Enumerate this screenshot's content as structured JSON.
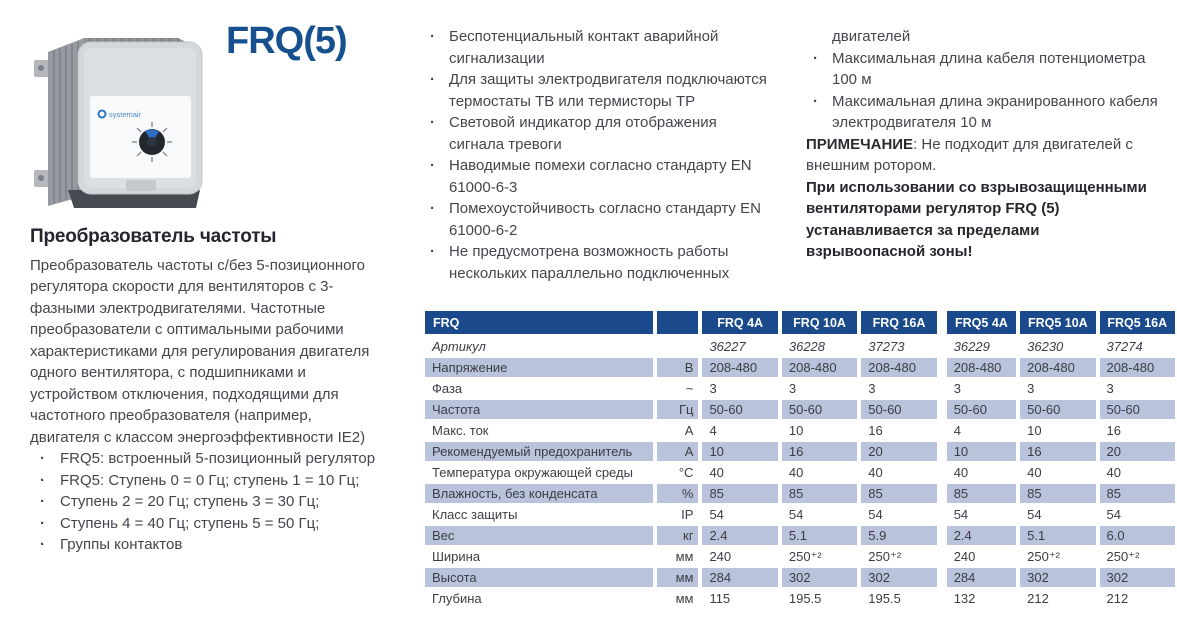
{
  "page": {
    "title": "FRQ(5)"
  },
  "colors": {
    "brand_blue": "#17508f",
    "table_header_navy": "#1a4a8c",
    "table_row_shade": "#b9c3dc",
    "body_text": "#45454d"
  },
  "figure": {
    "device_logo": "systemair"
  },
  "left": {
    "heading": "Преобразователь частоты",
    "paragraph": "Преобразователь частоты с/без 5-позиционного регулятора скорости для вентиляторов с 3-фазными электродвигателями. Частотные преобразователи с оптимальными рабочими характеристиками для регулирования двигателя одного вентилятора, с подшипниками и устройством отключения, подходящими для частотного преобразователя (например, двигателя с классом энергоэффективности IE2)",
    "bullets": [
      "FRQ5: встроенный 5-позиционный регулятор",
      "FRQ5: Ступень 0 = 0 Гц; ступень 1 = 10 Гц;",
      "Ступень 2 = 20 Гц; ступень 3 = 30 Гц;",
      "Ступень 4 = 40 Гц; ступень 5 = 50 Гц;",
      "Группы контактов"
    ]
  },
  "middle": {
    "bullets": [
      "Беспотенциальный контакт аварийной сигнализации",
      "Для защиты электродвигателя подключаются термостаты TB или термисторы TP",
      "Световой индикатор для отображения сигнала тревоги",
      "Наводимые помехи согласно стандарту EN 61000-6-3",
      "Помехоустойчивость согласно стандарту EN 61000-6-2",
      "Не предусмотрена возможность работы нескольких параллельно подключенных"
    ]
  },
  "right": {
    "continuation": "двигателей",
    "bullets": [
      "Максимальная длина кабеля потенциометра 100 м",
      "Максимальная длина экранированного кабеля электродвигателя 10 м"
    ],
    "note_label": "ПРИМЕЧАНИЕ",
    "note_text": ": Не подходит для двигателей с внешним ротором.",
    "warning": "При использовании со взрывозащищенными вентиляторами регулятор FRQ (5) устанавливается за пределами взрывоопасной зоны!"
  },
  "table": {
    "corner_label": "FRQ",
    "columns": [
      "FRQ 4A",
      "FRQ 10A",
      "FRQ 16A",
      "FRQ5 4A",
      "FRQ5 10A",
      "FRQ5 16A"
    ],
    "rows": [
      {
        "label": "Артикул",
        "unit": "",
        "italic": true,
        "values": [
          "36227",
          "36228",
          "37273",
          "36229",
          "36230",
          "37274"
        ]
      },
      {
        "label": "Напряжение",
        "unit": "В",
        "values": [
          "208-480",
          "208-480",
          "208-480",
          "208-480",
          "208-480",
          "208-480"
        ]
      },
      {
        "label": "Фаза",
        "unit": "~",
        "values": [
          "3",
          "3",
          "3",
          "3",
          "3",
          "3"
        ]
      },
      {
        "label": "Частота",
        "unit": "Гц",
        "values": [
          "50-60",
          "50-60",
          "50-60",
          "50-60",
          "50-60",
          "50-60"
        ]
      },
      {
        "label": "Макс. ток",
        "unit": "A",
        "values": [
          "4",
          "10",
          "16",
          "4",
          "10",
          "16"
        ]
      },
      {
        "label": "Рекомендуемый предохранитель",
        "unit": "A",
        "values": [
          "10",
          "16",
          "20",
          "10",
          "16",
          "20"
        ]
      },
      {
        "label": "Температура окружающей среды",
        "unit": "°C",
        "values": [
          "40",
          "40",
          "40",
          "40",
          "40",
          "40"
        ]
      },
      {
        "label": "Влажность, без конденсата",
        "unit": "%",
        "values": [
          "85",
          "85",
          "85",
          "85",
          "85",
          "85"
        ]
      },
      {
        "label": "Класс защиты",
        "unit": "IP",
        "values": [
          "54",
          "54",
          "54",
          "54",
          "54",
          "54"
        ]
      },
      {
        "label": "Вес",
        "unit": "кг",
        "values": [
          "2.4",
          "5.1",
          "5.9",
          "2.4",
          "5.1",
          "6.0"
        ]
      },
      {
        "label": "Ширина",
        "unit": "мм",
        "values": [
          "240",
          "250⁺²",
          "250⁺²",
          "240",
          "250⁺²",
          "250⁺²"
        ]
      },
      {
        "label": "Высота",
        "unit": "мм",
        "values": [
          "284",
          "302",
          "302",
          "284",
          "302",
          "302"
        ]
      },
      {
        "label": "Глубина",
        "unit": "мм",
        "values": [
          "115",
          "195.5",
          "195.5",
          "132",
          "212",
          "212"
        ]
      }
    ]
  }
}
